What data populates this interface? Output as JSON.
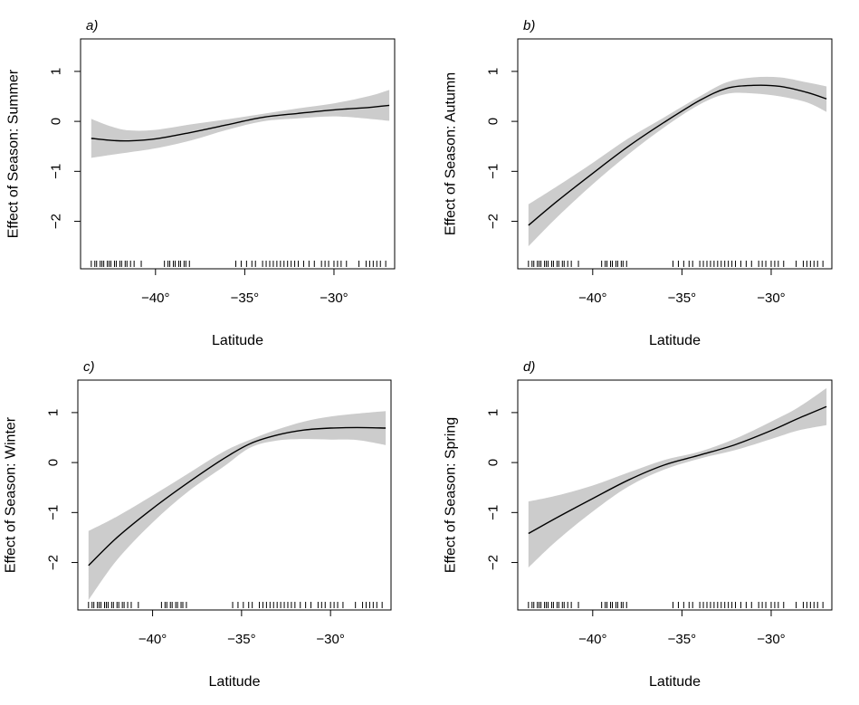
{
  "chart_data": [
    {
      "type": "line",
      "panel_label": "a)",
      "xlabel": "Latitude",
      "ylabel": "Effect of Season: Summer",
      "xlim": [
        -44.2,
        -26.6
      ],
      "ylim": [
        -2.95,
        1.65
      ],
      "xticks": [
        -40,
        -35,
        -30
      ],
      "xtick_labels": [
        "−40°",
        "−35°",
        "−30°"
      ],
      "yticks": [
        -2,
        -1,
        0,
        1
      ],
      "ytick_labels": [
        "−2",
        "−1",
        "0",
        "1"
      ],
      "grid": false,
      "legend": "none",
      "series": [
        {
          "x": [
            -43.6,
            -42.5,
            -41.5,
            -40.0,
            -38.0,
            -36.0,
            -34.0,
            -32.0,
            -30.0,
            -28.0,
            -26.9
          ],
          "y": [
            -0.34,
            -0.38,
            -0.39,
            -0.35,
            -0.22,
            -0.07,
            0.08,
            0.16,
            0.23,
            0.28,
            0.32
          ],
          "ci_lower": [
            -0.73,
            -0.67,
            -0.62,
            -0.54,
            -0.38,
            -0.17,
            0.0,
            0.06,
            0.1,
            0.05,
            0.01
          ],
          "ci_upper": [
            0.05,
            -0.1,
            -0.18,
            -0.17,
            -0.06,
            0.04,
            0.15,
            0.26,
            0.36,
            0.51,
            0.63
          ]
        }
      ],
      "rug": [
        -43.6,
        -43.4,
        -43.3,
        -43.1,
        -43.0,
        -42.9,
        -42.7,
        -42.6,
        -42.5,
        -42.3,
        -42.2,
        -42.0,
        -41.9,
        -41.7,
        -41.6,
        -41.4,
        -41.2,
        -40.8,
        -39.5,
        -39.3,
        -39.2,
        -39.0,
        -38.9,
        -38.7,
        -38.6,
        -38.4,
        -38.3,
        -38.1,
        -35.5,
        -35.2,
        -34.9,
        -34.6,
        -34.4,
        -34.0,
        -33.8,
        -33.6,
        -33.4,
        -33.2,
        -33.0,
        -32.8,
        -32.6,
        -32.4,
        -32.2,
        -32.0,
        -31.7,
        -31.4,
        -31.1,
        -30.7,
        -30.5,
        -30.3,
        -30.0,
        -29.8,
        -29.6,
        -29.3,
        -28.6,
        -28.2,
        -28.0,
        -27.8,
        -27.6,
        -27.4,
        -27.1
      ]
    },
    {
      "type": "line",
      "panel_label": "b)",
      "xlabel": "Latitude",
      "ylabel": "Effect of Season: Autumn",
      "xlim": [
        -44.2,
        -26.6
      ],
      "ylim": [
        -2.95,
        1.65
      ],
      "xticks": [
        -40,
        -35,
        -30
      ],
      "xtick_labels": [
        "−40°",
        "−35°",
        "−30°"
      ],
      "yticks": [
        -2,
        -1,
        0,
        1
      ],
      "ytick_labels": [
        "−2",
        "−1",
        "0",
        "1"
      ],
      "grid": false,
      "legend": "none",
      "series": [
        {
          "x": [
            -43.6,
            -42.0,
            -40.0,
            -38.0,
            -36.0,
            -34.0,
            -32.5,
            -31.0,
            -29.5,
            -28.0,
            -26.9
          ],
          "y": [
            -2.08,
            -1.6,
            -1.04,
            -0.5,
            -0.02,
            0.42,
            0.66,
            0.72,
            0.7,
            0.58,
            0.45
          ],
          "ci_lower": [
            -2.5,
            -1.92,
            -1.26,
            -0.66,
            -0.12,
            0.34,
            0.55,
            0.56,
            0.5,
            0.38,
            0.19
          ],
          "ci_upper": [
            -1.66,
            -1.3,
            -0.83,
            -0.34,
            0.08,
            0.5,
            0.78,
            0.88,
            0.88,
            0.78,
            0.7
          ]
        }
      ],
      "rug": [
        -43.6,
        -43.4,
        -43.3,
        -43.1,
        -43.0,
        -42.9,
        -42.7,
        -42.6,
        -42.5,
        -42.3,
        -42.2,
        -42.0,
        -41.9,
        -41.7,
        -41.6,
        -41.4,
        -41.2,
        -40.8,
        -39.5,
        -39.3,
        -39.2,
        -39.0,
        -38.9,
        -38.7,
        -38.6,
        -38.4,
        -38.3,
        -38.1,
        -35.5,
        -35.2,
        -34.9,
        -34.6,
        -34.4,
        -34.0,
        -33.8,
        -33.6,
        -33.4,
        -33.2,
        -33.0,
        -32.8,
        -32.6,
        -32.4,
        -32.2,
        -32.0,
        -31.7,
        -31.4,
        -31.1,
        -30.7,
        -30.5,
        -30.3,
        -30.0,
        -29.8,
        -29.6,
        -29.3,
        -28.6,
        -28.2,
        -28.0,
        -27.8,
        -27.6,
        -27.4,
        -27.1
      ]
    },
    {
      "type": "line",
      "panel_label": "c)",
      "xlabel": "Latitude",
      "ylabel": "Effect of Season: Winter",
      "xlim": [
        -44.2,
        -26.6
      ],
      "ylim": [
        -2.95,
        1.65
      ],
      "xticks": [
        -40,
        -35,
        -30
      ],
      "xtick_labels": [
        "−40°",
        "−35°",
        "−30°"
      ],
      "yticks": [
        -2,
        -1,
        0,
        1
      ],
      "ytick_labels": [
        "−2",
        "−1",
        "0",
        "1"
      ],
      "grid": false,
      "legend": "none",
      "series": [
        {
          "x": [
            -43.6,
            -42.0,
            -40.0,
            -38.0,
            -36.0,
            -34.5,
            -33.0,
            -31.5,
            -30.0,
            -28.5,
            -26.9
          ],
          "y": [
            -2.06,
            -1.5,
            -0.92,
            -0.4,
            0.08,
            0.38,
            0.55,
            0.65,
            0.69,
            0.7,
            0.69
          ],
          "ci_lower": [
            -2.75,
            -1.95,
            -1.2,
            -0.58,
            -0.08,
            0.3,
            0.44,
            0.47,
            0.46,
            0.45,
            0.35
          ],
          "ci_upper": [
            -1.37,
            -1.08,
            -0.66,
            -0.22,
            0.22,
            0.46,
            0.66,
            0.82,
            0.92,
            0.98,
            1.03
          ]
        }
      ],
      "rug": [
        -43.6,
        -43.4,
        -43.3,
        -43.1,
        -43.0,
        -42.9,
        -42.7,
        -42.6,
        -42.5,
        -42.3,
        -42.2,
        -42.0,
        -41.9,
        -41.7,
        -41.6,
        -41.4,
        -41.2,
        -40.8,
        -39.5,
        -39.3,
        -39.2,
        -39.0,
        -38.9,
        -38.7,
        -38.6,
        -38.4,
        -38.3,
        -38.1,
        -35.5,
        -35.2,
        -34.9,
        -34.6,
        -34.4,
        -34.0,
        -33.8,
        -33.6,
        -33.4,
        -33.2,
        -33.0,
        -32.8,
        -32.6,
        -32.4,
        -32.2,
        -32.0,
        -31.7,
        -31.4,
        -31.1,
        -30.7,
        -30.5,
        -30.3,
        -30.0,
        -29.8,
        -29.6,
        -29.3,
        -28.6,
        -28.2,
        -28.0,
        -27.8,
        -27.6,
        -27.4,
        -27.1
      ]
    },
    {
      "type": "line",
      "panel_label": "d)",
      "xlabel": "Latitude",
      "ylabel": "Effect of Season: Spring",
      "xlim": [
        -44.2,
        -26.6
      ],
      "ylim": [
        -2.95,
        1.65
      ],
      "xticks": [
        -40,
        -35,
        -30
      ],
      "xtick_labels": [
        "−40°",
        "−35°",
        "−30°"
      ],
      "yticks": [
        -2,
        -1,
        0,
        1
      ],
      "ytick_labels": [
        "−2",
        "−1",
        "0",
        "1"
      ],
      "grid": false,
      "legend": "none",
      "series": [
        {
          "x": [
            -43.6,
            -42.0,
            -40.0,
            -38.0,
            -36.0,
            -34.0,
            -32.0,
            -30.0,
            -28.5,
            -26.9
          ],
          "y": [
            -1.42,
            -1.1,
            -0.72,
            -0.35,
            -0.05,
            0.15,
            0.36,
            0.64,
            0.88,
            1.12
          ],
          "ci_lower": [
            -2.1,
            -1.56,
            -0.98,
            -0.48,
            -0.14,
            0.08,
            0.25,
            0.47,
            0.64,
            0.75
          ],
          "ci_upper": [
            -0.78,
            -0.66,
            -0.46,
            -0.2,
            0.05,
            0.22,
            0.48,
            0.82,
            1.1,
            1.49
          ]
        }
      ],
      "rug": [
        -43.6,
        -43.4,
        -43.3,
        -43.1,
        -43.0,
        -42.9,
        -42.7,
        -42.6,
        -42.5,
        -42.3,
        -42.2,
        -42.0,
        -41.9,
        -41.7,
        -41.6,
        -41.4,
        -41.2,
        -40.8,
        -39.5,
        -39.3,
        -39.2,
        -39.0,
        -38.9,
        -38.7,
        -38.6,
        -38.4,
        -38.3,
        -38.1,
        -35.5,
        -35.2,
        -34.9,
        -34.6,
        -34.4,
        -34.0,
        -33.8,
        -33.6,
        -33.4,
        -33.2,
        -33.0,
        -32.8,
        -32.6,
        -32.4,
        -32.2,
        -32.0,
        -31.7,
        -31.4,
        -31.1,
        -30.7,
        -30.5,
        -30.3,
        -30.0,
        -29.8,
        -29.6,
        -29.3,
        -28.6,
        -28.2,
        -28.0,
        -27.8,
        -27.6,
        -27.4,
        -27.1
      ]
    }
  ],
  "colors": {
    "line": "#000000",
    "confidence_band": "#cccccc",
    "frame": "#000000",
    "rug": "#000000"
  }
}
